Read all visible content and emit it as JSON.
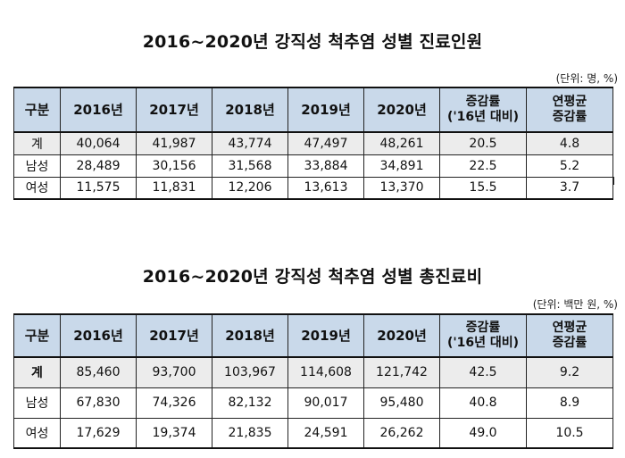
{
  "table1": {
    "title": "2016~2020년 강직성 척추염 성별 진료인원",
    "unit": "(단위: 명, %)",
    "headers": [
      "구분",
      "2016년",
      "2017년",
      "2018년",
      "2019년",
      "2020년"
    ],
    "header_growth_line1": "증감률",
    "header_growth_line2": "('16년 대비)",
    "header_avg_line1": "연평균",
    "header_avg_line2": "증감률",
    "rows": [
      {
        "label": "계",
        "vals": [
          "40,064",
          "41,987",
          "43,774",
          "47,497",
          "48,261",
          "20.5",
          "4.8"
        ]
      },
      {
        "label": "남성",
        "vals": [
          "28,489",
          "30,156",
          "31,568",
          "33,884",
          "34,891",
          "22.5",
          "5.2"
        ]
      },
      {
        "label": "여성",
        "vals": [
          "11,575",
          "11,831",
          "12,206",
          "13,613",
          "13,370",
          "15.5",
          "3.7"
        ]
      }
    ]
  },
  "table2": {
    "title": "2016~2020년 강직성 척추염 성별 총진료비",
    "unit": "(단위: 백만 원, %)",
    "headers": [
      "구분",
      "2016년",
      "2017년",
      "2018년",
      "2019년",
      "2020년"
    ],
    "header_growth_line1": "증감률",
    "header_growth_line2": "('16년 대비)",
    "header_avg_line1": "연평균",
    "header_avg_line2": "증감률",
    "rows": [
      {
        "label": "계",
        "vals": [
          "85,460",
          "93,700",
          "103,967",
          "114,608",
          "121,742",
          "42.5",
          "9.2"
        ]
      },
      {
        "label": "남성",
        "vals": [
          "67,830",
          "74,326",
          "82,132",
          "90,017",
          "95,480",
          "40.8",
          "8.9"
        ]
      },
      {
        "label": "여성",
        "vals": [
          "17,629",
          "19,374",
          "21,835",
          "24,591",
          "26,262",
          "49.0",
          "10.5"
        ]
      }
    ]
  }
}
